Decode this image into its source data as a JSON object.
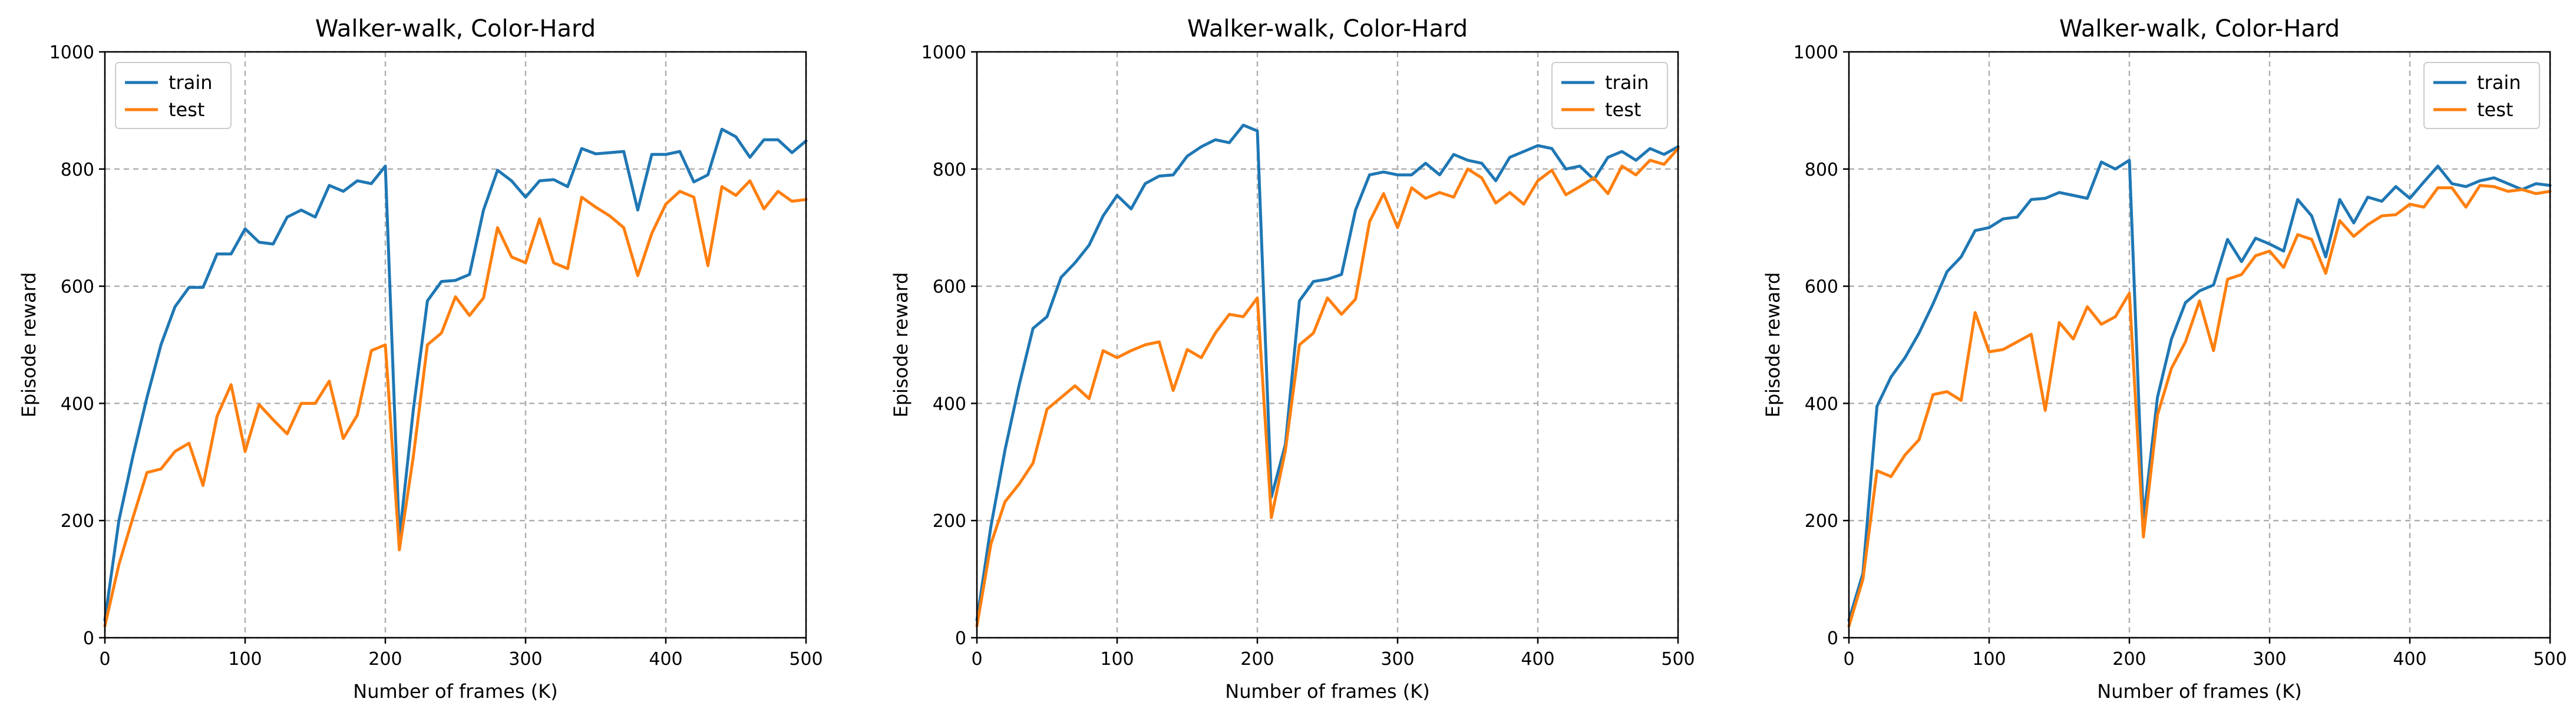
{
  "chart_data": [
    {
      "type": "line",
      "title": "Walker-walk, Color-Hard",
      "xlabel": "Number of frames (K)",
      "ylabel": "Episode reward",
      "xlim": [
        0,
        500
      ],
      "ylim": [
        0,
        1000
      ],
      "xticks": [
        0,
        100,
        200,
        300,
        400,
        500
      ],
      "yticks": [
        0,
        200,
        400,
        600,
        800,
        1000
      ],
      "grid": true,
      "legend_position": "top-left",
      "series": [
        {
          "name": "train",
          "color": "#1f77b4",
          "x": [
            0,
            10,
            20,
            30,
            40,
            50,
            60,
            70,
            80,
            90,
            100,
            110,
            120,
            130,
            140,
            150,
            160,
            170,
            180,
            190,
            200,
            210,
            220,
            230,
            240,
            250,
            260,
            270,
            280,
            290,
            300,
            310,
            320,
            330,
            340,
            350,
            360,
            370,
            380,
            390,
            400,
            410,
            420,
            430,
            440,
            450,
            460,
            470,
            480,
            490,
            500
          ],
          "y": [
            30,
            200,
            310,
            410,
            500,
            565,
            598,
            598,
            655,
            655,
            698,
            675,
            672,
            718,
            730,
            718,
            772,
            762,
            780,
            775,
            805,
            170,
            390,
            575,
            608,
            610,
            620,
            730,
            798,
            780,
            752,
            780,
            782,
            770,
            835,
            826,
            828,
            830,
            730,
            825,
            825,
            830,
            778,
            790,
            868,
            855,
            820,
            850,
            850,
            828,
            848
          ]
        },
        {
          "name": "test",
          "color": "#ff7f0e",
          "x": [
            0,
            10,
            20,
            30,
            40,
            50,
            60,
            70,
            80,
            90,
            100,
            110,
            120,
            130,
            140,
            150,
            160,
            170,
            180,
            190,
            200,
            210,
            220,
            230,
            240,
            250,
            260,
            270,
            280,
            290,
            300,
            310,
            320,
            330,
            340,
            350,
            360,
            370,
            380,
            390,
            400,
            410,
            420,
            430,
            440,
            450,
            460,
            470,
            480,
            490,
            500
          ],
          "y": [
            20,
            125,
            205,
            282,
            288,
            318,
            332,
            260,
            378,
            432,
            318,
            398,
            372,
            348,
            400,
            400,
            438,
            340,
            380,
            490,
            500,
            150,
            310,
            500,
            520,
            582,
            550,
            580,
            700,
            650,
            640,
            715,
            640,
            630,
            752,
            735,
            720,
            700,
            618,
            690,
            740,
            762,
            752,
            635,
            770,
            755,
            780,
            732,
            762,
            745,
            748
          ]
        }
      ]
    },
    {
      "type": "line",
      "title": "Walker-walk, Color-Hard",
      "xlabel": "Number of frames (K)",
      "ylabel": "Episode reward",
      "xlim": [
        0,
        500
      ],
      "ylim": [
        0,
        1000
      ],
      "xticks": [
        0,
        100,
        200,
        300,
        400,
        500
      ],
      "yticks": [
        0,
        200,
        400,
        600,
        800,
        1000
      ],
      "grid": true,
      "legend_position": "top-right",
      "series": [
        {
          "name": "train",
          "color": "#1f77b4",
          "x": [
            0,
            10,
            20,
            30,
            40,
            50,
            60,
            70,
            80,
            90,
            100,
            110,
            120,
            130,
            140,
            150,
            160,
            170,
            180,
            190,
            200,
            210,
            220,
            230,
            240,
            250,
            260,
            270,
            280,
            290,
            300,
            310,
            320,
            330,
            340,
            350,
            360,
            370,
            380,
            390,
            400,
            410,
            420,
            430,
            440,
            450,
            460,
            470,
            480,
            490,
            500
          ],
          "y": [
            30,
            190,
            320,
            430,
            528,
            548,
            615,
            640,
            670,
            720,
            755,
            732,
            775,
            788,
            790,
            822,
            838,
            850,
            845,
            875,
            865,
            240,
            330,
            575,
            608,
            612,
            620,
            730,
            790,
            795,
            790,
            790,
            810,
            790,
            825,
            815,
            810,
            780,
            820,
            830,
            840,
            835,
            800,
            805,
            782,
            820,
            830,
            815,
            835,
            825,
            838
          ],
          "note": ""
        },
        {
          "name": "test",
          "color": "#ff7f0e",
          "x": [
            0,
            10,
            20,
            30,
            40,
            50,
            60,
            70,
            80,
            90,
            100,
            110,
            120,
            130,
            140,
            150,
            160,
            170,
            180,
            190,
            200,
            210,
            220,
            230,
            240,
            250,
            260,
            270,
            280,
            290,
            300,
            310,
            320,
            330,
            340,
            350,
            360,
            370,
            380,
            390,
            400,
            410,
            420,
            430,
            440,
            450,
            460,
            470,
            480,
            490,
            500
          ],
          "y": [
            20,
            160,
            232,
            262,
            298,
            390,
            410,
            430,
            408,
            490,
            478,
            490,
            500,
            505,
            422,
            492,
            478,
            520,
            552,
            548,
            580,
            205,
            320,
            500,
            520,
            580,
            552,
            578,
            710,
            758,
            700,
            768,
            750,
            760,
            752,
            800,
            785,
            742,
            760,
            740,
            780,
            798,
            756,
            770,
            785,
            758,
            805,
            790,
            815,
            808,
            835
          ]
        }
      ]
    },
    {
      "type": "line",
      "title": "Walker-walk, Color-Hard",
      "xlabel": "Number of frames (K)",
      "ylabel": "Episode reward",
      "xlim": [
        0,
        500
      ],
      "ylim": [
        0,
        1000
      ],
      "xticks": [
        0,
        100,
        200,
        300,
        400,
        500
      ],
      "yticks": [
        0,
        200,
        400,
        600,
        800,
        1000
      ],
      "grid": true,
      "legend_position": "top-right",
      "series": [
        {
          "name": "train",
          "color": "#1f77b4",
          "x": [
            0,
            10,
            20,
            30,
            40,
            50,
            60,
            70,
            80,
            90,
            100,
            110,
            120,
            130,
            140,
            150,
            160,
            170,
            180,
            190,
            200,
            210,
            220,
            230,
            240,
            250,
            260,
            270,
            280,
            290,
            300,
            310,
            320,
            330,
            340,
            350,
            360,
            370,
            380,
            390,
            400,
            410,
            420,
            430,
            440,
            450,
            460,
            470,
            480,
            490,
            500
          ],
          "y": [
            30,
            110,
            395,
            445,
            478,
            520,
            570,
            625,
            650,
            695,
            700,
            715,
            718,
            748,
            750,
            760,
            755,
            750,
            812,
            800,
            815,
            200,
            410,
            510,
            572,
            592,
            602,
            680,
            642,
            682,
            672,
            660,
            748,
            720,
            650,
            748,
            708,
            752,
            745,
            770,
            750,
            778,
            805,
            775,
            770,
            780,
            785,
            775,
            765,
            775,
            772
          ]
        },
        {
          "name": "test",
          "color": "#ff7f0e",
          "x": [
            0,
            10,
            20,
            30,
            40,
            50,
            60,
            70,
            80,
            90,
            100,
            110,
            120,
            130,
            140,
            150,
            160,
            170,
            180,
            190,
            200,
            210,
            220,
            230,
            240,
            250,
            260,
            270,
            280,
            290,
            300,
            310,
            320,
            330,
            340,
            350,
            360,
            370,
            380,
            390,
            400,
            410,
            420,
            430,
            440,
            450,
            460,
            470,
            480,
            490,
            500
          ],
          "y": [
            20,
            100,
            285,
            275,
            312,
            338,
            415,
            420,
            405,
            555,
            488,
            492,
            505,
            518,
            388,
            538,
            510,
            565,
            535,
            548,
            588,
            172,
            380,
            460,
            505,
            575,
            490,
            612,
            620,
            652,
            660,
            632,
            688,
            680,
            622,
            712,
            685,
            705,
            720,
            722,
            740,
            735,
            768,
            768,
            735,
            772,
            770,
            762,
            765,
            758,
            762
          ]
        }
      ]
    }
  ]
}
